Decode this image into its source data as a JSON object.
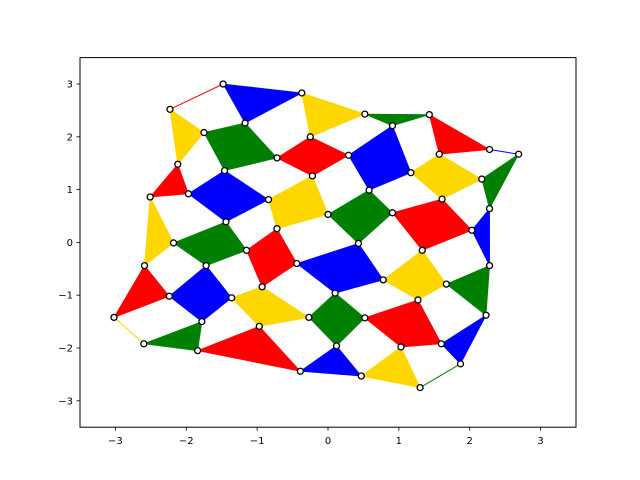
{
  "chart_data": {
    "type": "scatter",
    "title": "",
    "xlabel": "",
    "ylabel": "",
    "xlim": [
      -3.5,
      3.5
    ],
    "ylim": [
      -3.5,
      3.5
    ],
    "xticks": [
      -3,
      -2,
      -1,
      0,
      1,
      2,
      3
    ],
    "yticks": [
      -3,
      -2,
      -1,
      0,
      1,
      2,
      3
    ],
    "grid": false,
    "colors": {
      "red": "#ff0000",
      "blue": "#0000ff",
      "green": "#008000",
      "gold": "#ffd700"
    },
    "vertices": [
      {
        "x": -1.48,
        "y": 3.0
      },
      {
        "x": -0.37,
        "y": 2.83
      },
      {
        "x": -2.23,
        "y": 2.52
      },
      {
        "x": 0.52,
        "y": 2.43
      },
      {
        "x": 1.43,
        "y": 2.42
      },
      {
        "x": -1.17,
        "y": 2.26
      },
      {
        "x": 0.91,
        "y": 2.21
      },
      {
        "x": -1.75,
        "y": 2.08
      },
      {
        "x": -0.25,
        "y": 2.0
      },
      {
        "x": 2.28,
        "y": 1.76
      },
      {
        "x": 2.69,
        "y": 1.67
      },
      {
        "x": 1.57,
        "y": 1.67
      },
      {
        "x": 0.29,
        "y": 1.65
      },
      {
        "x": -0.72,
        "y": 1.6
      },
      {
        "x": -2.12,
        "y": 1.48
      },
      {
        "x": -1.46,
        "y": 1.36
      },
      {
        "x": 1.17,
        "y": 1.32
      },
      {
        "x": -0.22,
        "y": 1.26
      },
      {
        "x": 2.17,
        "y": 1.2
      },
      {
        "x": 0.58,
        "y": 0.99
      },
      {
        "x": -1.97,
        "y": 0.92
      },
      {
        "x": -2.51,
        "y": 0.86
      },
      {
        "x": 1.61,
        "y": 0.82
      },
      {
        "x": -0.84,
        "y": 0.81
      },
      {
        "x": 2.28,
        "y": 0.64
      },
      {
        "x": 0.91,
        "y": 0.56
      },
      {
        "x": 0.0,
        "y": 0.53
      },
      {
        "x": -1.44,
        "y": 0.39
      },
      {
        "x": -0.72,
        "y": 0.26
      },
      {
        "x": 2.03,
        "y": 0.23
      },
      {
        "x": -2.18,
        "y": -0.01
      },
      {
        "x": 0.43,
        "y": -0.02
      },
      {
        "x": -1.15,
        "y": -0.15
      },
      {
        "x": 1.33,
        "y": -0.15
      },
      {
        "x": -0.44,
        "y": -0.4
      },
      {
        "x": 2.28,
        "y": -0.44
      },
      {
        "x": -2.59,
        "y": -0.44
      },
      {
        "x": -1.72,
        "y": -0.44
      },
      {
        "x": 0.78,
        "y": -0.71
      },
      {
        "x": 1.67,
        "y": -0.79
      },
      {
        "x": -0.93,
        "y": -0.84
      },
      {
        "x": 0.1,
        "y": -0.96
      },
      {
        "x": -2.24,
        "y": -1.02
      },
      {
        "x": -1.36,
        "y": -1.05
      },
      {
        "x": 1.27,
        "y": -1.09
      },
      {
        "x": -3.02,
        "y": -1.42
      },
      {
        "x": -0.27,
        "y": -1.42
      },
      {
        "x": 0.52,
        "y": -1.43
      },
      {
        "x": 2.23,
        "y": -1.38
      },
      {
        "x": -1.78,
        "y": -1.5
      },
      {
        "x": -0.97,
        "y": -1.59
      },
      {
        "x": -2.6,
        "y": -1.92
      },
      {
        "x": 1.6,
        "y": -1.92
      },
      {
        "x": 0.12,
        "y": -1.96
      },
      {
        "x": 1.03,
        "y": -1.98
      },
      {
        "x": -1.84,
        "y": -2.05
      },
      {
        "x": 1.87,
        "y": -2.3
      },
      {
        "x": -0.39,
        "y": -2.44
      },
      {
        "x": 0.47,
        "y": -2.53
      },
      {
        "x": 1.3,
        "y": -2.75
      }
    ],
    "polygons": [
      {
        "color": "blue",
        "v": [
          0,
          1,
          5
        ]
      },
      {
        "color": "gold",
        "v": [
          1,
          3,
          8
        ]
      },
      {
        "color": "gold",
        "v": [
          2,
          7,
          14
        ]
      },
      {
        "color": "green",
        "v": [
          3,
          4,
          6
        ]
      },
      {
        "color": "green",
        "v": [
          7,
          5,
          13,
          15
        ]
      },
      {
        "color": "red",
        "v": [
          8,
          12,
          17,
          13
        ]
      },
      {
        "color": "blue",
        "v": [
          12,
          6,
          16,
          19
        ]
      },
      {
        "color": "red",
        "v": [
          4,
          9,
          11
        ]
      },
      {
        "color": "green",
        "v": [
          10,
          18,
          24
        ]
      },
      {
        "color": "gold",
        "v": [
          11,
          18,
          22,
          16
        ]
      },
      {
        "color": "red",
        "v": [
          14,
          20,
          21
        ]
      },
      {
        "color": "blue",
        "v": [
          15,
          23,
          27,
          20
        ]
      },
      {
        "color": "gold",
        "v": [
          17,
          26,
          28,
          23
        ]
      },
      {
        "color": "green",
        "v": [
          19,
          25,
          31,
          26
        ]
      },
      {
        "color": "red",
        "v": [
          22,
          29,
          33,
          25
        ]
      },
      {
        "color": "blue",
        "v": [
          24,
          35,
          29
        ]
      },
      {
        "color": "gold",
        "v": [
          21,
          30,
          36
        ]
      },
      {
        "color": "green",
        "v": [
          27,
          32,
          37,
          30
        ]
      },
      {
        "color": "red",
        "v": [
          28,
          34,
          40,
          32
        ]
      },
      {
        "color": "blue",
        "v": [
          31,
          38,
          41,
          34
        ]
      },
      {
        "color": "gold",
        "v": [
          33,
          39,
          44,
          38
        ]
      },
      {
        "color": "green",
        "v": [
          35,
          48,
          39
        ]
      },
      {
        "color": "red",
        "v": [
          36,
          42,
          45
        ]
      },
      {
        "color": "blue",
        "v": [
          37,
          43,
          49,
          42
        ]
      },
      {
        "color": "gold",
        "v": [
          43,
          50,
          46,
          40
        ]
      },
      {
        "color": "green",
        "v": [
          41,
          47,
          53,
          46
        ]
      },
      {
        "color": "red",
        "v": [
          47,
          44,
          52,
          54
        ]
      },
      {
        "color": "blue",
        "v": [
          48,
          56,
          52
        ]
      },
      {
        "color": "green",
        "v": [
          51,
          49,
          55
        ]
      },
      {
        "color": "red",
        "v": [
          55,
          50,
          57
        ]
      },
      {
        "color": "blue",
        "v": [
          53,
          57,
          58
        ]
      },
      {
        "color": "gold",
        "v": [
          58,
          54,
          59
        ]
      }
    ],
    "edges": [
      {
        "color": "red",
        "v": [
          2,
          0
        ]
      },
      {
        "color": "blue",
        "v": [
          9,
          10
        ]
      },
      {
        "color": "gold",
        "v": [
          45,
          51
        ]
      },
      {
        "color": "green",
        "v": [
          59,
          56
        ]
      }
    ]
  }
}
